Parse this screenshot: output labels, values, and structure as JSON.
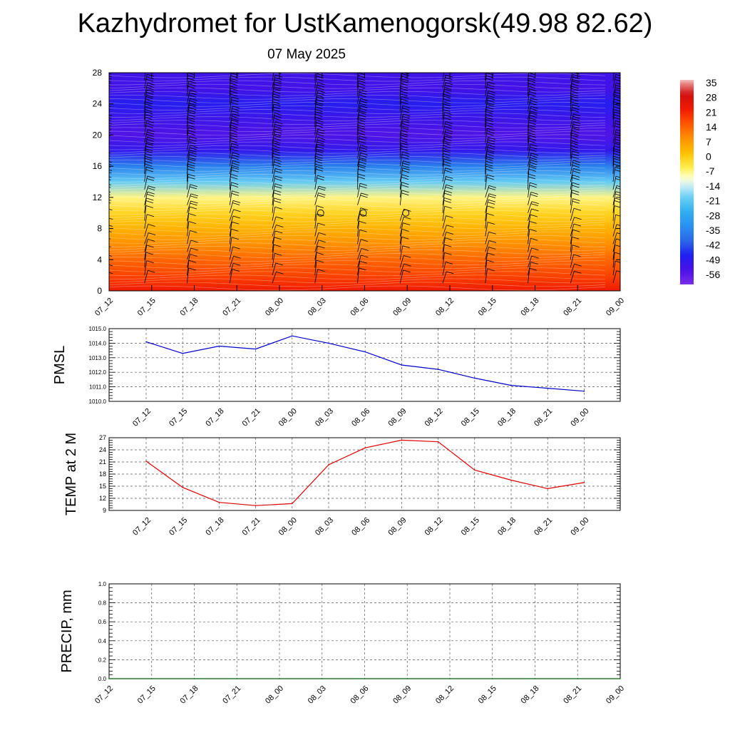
{
  "title": "Kazhydromet for UstKamenogorsk(49.98 82.62)",
  "subtitle": "07 May 2025",
  "colors": {
    "pmsl_line": "#0000cc",
    "temp_line": "#e00000",
    "precip_line": "#006400",
    "grid": "#555555"
  },
  "chart_data": [
    {
      "type": "heatmap",
      "name_hint": "vertical time section",
      "x_tick_labels": [
        "07_12",
        "07_15",
        "07_18",
        "07_21",
        "08_00",
        "08_03",
        "08_06",
        "08_09",
        "08_12",
        "08_15",
        "08_18",
        "08_21",
        "09_00"
      ],
      "y_ticks": [
        0,
        4,
        8,
        12,
        16,
        20,
        24,
        28
      ],
      "ylim": [
        0,
        28
      ],
      "levels": [
        0,
        2,
        4,
        6,
        8,
        10,
        12,
        14,
        16,
        18,
        20,
        22,
        24,
        26,
        28
      ],
      "values_by_level": [
        21,
        16,
        12,
        7,
        2,
        -3,
        -9,
        -22,
        -38,
        -52,
        -57,
        -54,
        -50,
        -55,
        -54
      ],
      "legend_labels": [
        "35",
        "28",
        "21",
        "14",
        "7",
        "0",
        "-7",
        "-14",
        "-21",
        "-28",
        "-35",
        "-42",
        "-49",
        "-56"
      ],
      "legend_placement": "right",
      "colorbar_range": [
        -63,
        35
      ],
      "calm_markers": [
        {
          "x": "08_03",
          "y": 10
        },
        {
          "x": "08_06",
          "y": 10
        },
        {
          "x": "08_09",
          "y": 10
        }
      ],
      "wind_barbs": true,
      "grid": false
    },
    {
      "type": "line",
      "ylabel": "PMSL",
      "x": [
        "07_12",
        "07_15",
        "07_18",
        "07_21",
        "08_00",
        "08_03",
        "08_06",
        "08_09",
        "08_12",
        "08_15",
        "08_18",
        "08_21",
        "09_00"
      ],
      "y_tick_labels": [
        "1010.0",
        "1011.0",
        "1012.0",
        "1013.0",
        "1014.0",
        "1015.0"
      ],
      "ylim": [
        1010,
        1015
      ],
      "values": [
        1014.1,
        1013.3,
        1013.8,
        1013.6,
        1014.5,
        1014.0,
        1013.4,
        1012.5,
        1012.2,
        1011.6,
        1011.1,
        1010.9,
        1010.7
      ],
      "grid": true
    },
    {
      "type": "line",
      "ylabel": "TEMP at 2 M",
      "x": [
        "07_12",
        "07_15",
        "07_18",
        "07_21",
        "08_00",
        "08_03",
        "08_06",
        "08_09",
        "08_12",
        "08_15",
        "08_18",
        "08_21",
        "09_00"
      ],
      "y_tick_labels": [
        "9",
        "12",
        "15",
        "18",
        "21",
        "24",
        "27"
      ],
      "ylim": [
        9,
        27
      ],
      "values": [
        21.2,
        14.7,
        11.0,
        10.2,
        10.7,
        20.3,
        24.5,
        26.4,
        26.0,
        19.0,
        16.5,
        14.4,
        15.9
      ],
      "grid": true
    },
    {
      "type": "line",
      "ylabel": "PRECIP, mm",
      "x": [
        "07_12",
        "07_15",
        "07_18",
        "07_21",
        "08_00",
        "08_03",
        "08_06",
        "08_09",
        "08_12",
        "08_15",
        "08_18",
        "08_21",
        "09_00"
      ],
      "y_tick_labels": [
        "0.0",
        "0.2",
        "0.4",
        "0.6",
        "0.8",
        "1.0"
      ],
      "ylim": [
        0,
        1
      ],
      "values": [
        0,
        0,
        0,
        0,
        0,
        0,
        0,
        0,
        0,
        0,
        0,
        0,
        0
      ],
      "grid": true
    }
  ]
}
